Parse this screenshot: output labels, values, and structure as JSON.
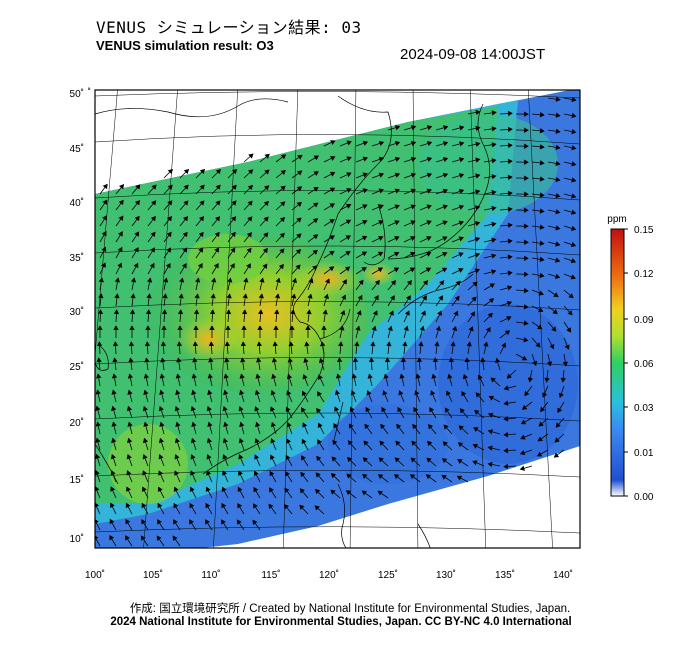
{
  "header": {
    "title_ja": "VENUS シミュレーション結果: 03",
    "title_en": "VENUS simulation result: O3",
    "timestamp": "2024-09-08 14:00JST"
  },
  "map": {
    "lat_ticks": [
      "50˚",
      "45˚",
      "40˚",
      "35˚",
      "30˚",
      "25˚",
      "20˚",
      "15˚",
      "10˚"
    ],
    "lon_ticks": [
      "100˚",
      "105˚",
      "110˚",
      "115˚",
      "120˚",
      "125˚",
      "130˚",
      "135˚",
      "140˚"
    ],
    "variable": "O3",
    "domain_fill_color": "#3a78e0"
  },
  "colorbar": {
    "unit": "ppm",
    "ticks": [
      "0.15",
      "0.12",
      "0.09",
      "0.06",
      "0.03",
      "0.01",
      "0.00"
    ],
    "colors": [
      "#ffffff",
      "#2050d0",
      "#3a8af0",
      "#28c0e0",
      "#30d060",
      "#b0e030",
      "#f0d020",
      "#f07010",
      "#c01010"
    ]
  },
  "footer": {
    "line1": "作成: 国立環境研究所 / Created by National Institute for Environmental Studies, Japan.",
    "line2": "2024 National Institute for Environmental Studies, Japan. CC BY-NC 4.0 International"
  }
}
